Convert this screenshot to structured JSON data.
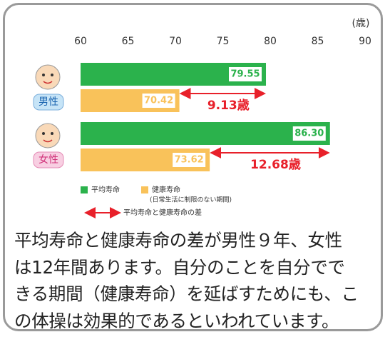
{
  "chart_data": {
    "type": "bar",
    "orientation": "horizontal",
    "x_label": "(歳)",
    "categories": [
      "男性",
      "女性"
    ],
    "series": [
      {
        "name": "平均寿命",
        "color": "#2bb24c",
        "values": [
          79.55,
          86.3
        ],
        "value_labels": [
          "79.55",
          "86.30"
        ]
      },
      {
        "name": "健康寿命",
        "color": "#f9c25a",
        "values": [
          70.42,
          73.62
        ],
        "value_labels": [
          "70.42",
          "73.62"
        ]
      }
    ],
    "differences": [
      {
        "value": 9.13,
        "label": "9.13歳"
      },
      {
        "value": 12.68,
        "label": "12.68歳"
      }
    ],
    "legend_note": "(日常生活に制限のない期間)",
    "difference_legend": "平均寿命と健康寿命の差",
    "xlim": [
      60,
      90
    ],
    "xticks": [
      60,
      65,
      70,
      75,
      80,
      85,
      90
    ]
  },
  "caption": [
    "平均寿命と健康寿命の差が男性９年、女性",
    "は12年間あります。自分のことを自分でで",
    "きる期間（健康寿命）を延ばすためにも、こ",
    "の体操は効果的であるといわれています。"
  ]
}
